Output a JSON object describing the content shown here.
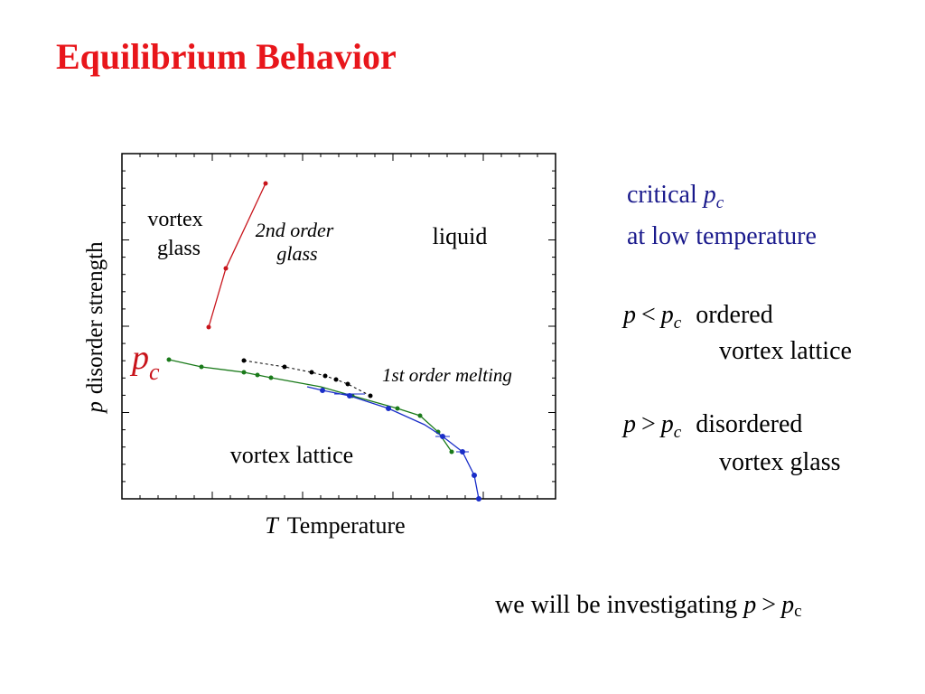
{
  "title": "Equilibrium Behavior",
  "diagram": {
    "y_axis": {
      "symbol": "p",
      "label": "disorder strength"
    },
    "x_axis": {
      "symbol": "T",
      "label": "Temperature"
    },
    "vortex_glass": [
      "vortex",
      "glass"
    ],
    "second_order_glass": [
      "2nd order",
      "glass"
    ],
    "liquid": "liquid",
    "pc": {
      "symbol": "p",
      "sub": "c"
    },
    "first_order_melting": "1st order melting",
    "vortex_lattice": "vortex lattice"
  },
  "notes": {
    "critical": {
      "text": "critical",
      "symbol": "p",
      "sub": "c"
    },
    "low_temperature": "at low temperature",
    "ordered": {
      "symbol": "p",
      "relation": "<",
      "symbol2": "p",
      "sub": "c",
      "label": "ordered",
      "label2": "vortex lattice"
    },
    "disordered": {
      "symbol": "p",
      "relation": ">",
      "symbol2": "p",
      "sub": "c",
      "label": "disordered",
      "label2": "vortex glass"
    }
  },
  "footer": {
    "text": "we will be investigating",
    "symbol": "p",
    "relation": ">",
    "symbol2": "p",
    "sub": "c"
  }
}
